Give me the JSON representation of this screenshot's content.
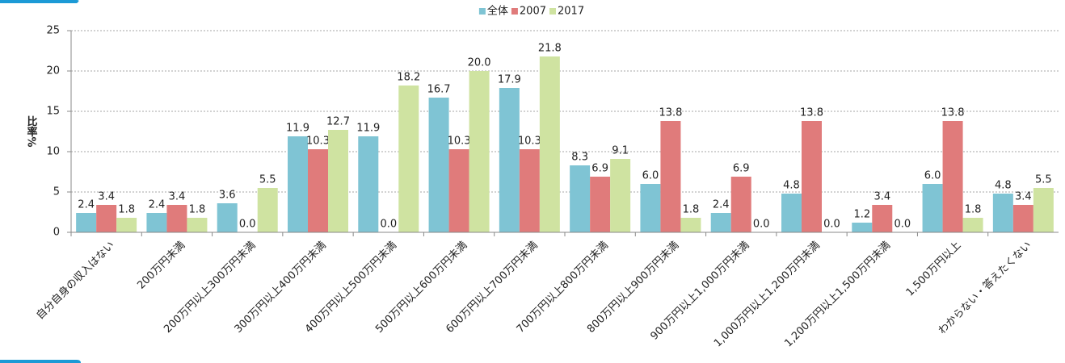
{
  "chart_data": {
    "type": "bar",
    "y_label": "比率%",
    "categories": [
      "自分自身の収入はない",
      "200万円未満",
      "200万円以上300万円未満",
      "300万円以上400万円未満",
      "400万円以上500万円未満",
      "500万円以上600万円未満",
      "600万円以上700万円未満",
      "700万円以上800万円未満",
      "800万円以上900万円未満",
      "900万円以上1,000万円未満",
      "1,000万円以上1,200万円未満",
      "1,200万円以上1,500万円未満",
      "1,500万円以上",
      "わからない・答えたくない"
    ],
    "series": [
      {
        "name": "全体",
        "color": "#7fc4d4",
        "values": [
          2.4,
          2.4,
          3.6,
          11.9,
          11.9,
          16.7,
          17.9,
          8.3,
          6.0,
          2.4,
          4.8,
          1.2,
          6.0,
          4.8
        ],
        "value_labels": [
          "2.4",
          "2.4",
          "3.6",
          "11.9",
          "11.9",
          "16.7",
          "17.9",
          "8.3",
          "6.0",
          "2.4",
          "4.8",
          "1.2",
          "6.0",
          "4.8"
        ]
      },
      {
        "name": "2007",
        "color": "#e07b7b",
        "values": [
          3.4,
          3.4,
          0.0,
          10.3,
          0.0,
          10.3,
          10.3,
          6.9,
          13.8,
          6.9,
          13.8,
          3.4,
          13.8,
          3.4
        ],
        "value_labels": [
          "3.4",
          "3.4",
          "0.0",
          "10.3",
          "0.0",
          "10.3",
          "10.3",
          "6.9",
          "13.8",
          "6.9",
          "13.8",
          "3.4",
          "13.8",
          "3.4"
        ]
      },
      {
        "name": "2017",
        "color": "#cfe3a1",
        "values": [
          1.8,
          1.8,
          5.5,
          12.7,
          18.2,
          20.0,
          21.8,
          9.1,
          1.8,
          0.0,
          0.0,
          0.0,
          1.8,
          5.5
        ],
        "value_labels": [
          "1.8",
          "1.8",
          "5.5",
          "12.7",
          "18.2",
          "20.0",
          "21.8",
          "9.1",
          "1.8",
          "0.0",
          "0.0",
          "0.0",
          "1.8",
          "5.5"
        ]
      }
    ],
    "ylim": [
      0,
      25
    ],
    "yticks": [
      0,
      5,
      10,
      15,
      20,
      25
    ],
    "grid": true,
    "legend": "top"
  }
}
